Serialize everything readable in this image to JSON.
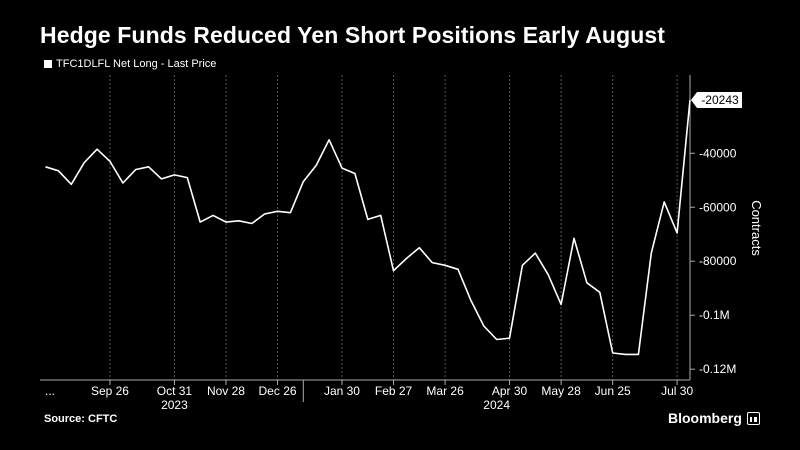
{
  "title": "Hedge Funds Reduced Yen Short Positions Early August",
  "source": "Source: CFTC",
  "brand": "Bloomberg",
  "chart_data": {
    "type": "line",
    "series": [
      {
        "name": "TFC1DLFL Net Long - Last Price",
        "points": [
          [
            "2023-08-22",
            -45000
          ],
          [
            "2023-08-29",
            -46500
          ],
          [
            "2023-09-05",
            -51500
          ],
          [
            "2023-09-12",
            -43500
          ],
          [
            "2023-09-19",
            -38500
          ],
          [
            "2023-09-26",
            -43000
          ],
          [
            "2023-10-03",
            -51000
          ],
          [
            "2023-10-10",
            -46000
          ],
          [
            "2023-10-17",
            -45000
          ],
          [
            "2023-10-24",
            -49500
          ],
          [
            "2023-10-31",
            -48000
          ],
          [
            "2023-11-07",
            -49000
          ],
          [
            "2023-11-14",
            -65500
          ],
          [
            "2023-11-21",
            -63000
          ],
          [
            "2023-11-28",
            -65500
          ],
          [
            "2023-12-05",
            -65000
          ],
          [
            "2023-12-12",
            -66000
          ],
          [
            "2023-12-19",
            -62500
          ],
          [
            "2023-12-26",
            -61500
          ],
          [
            "2024-01-02",
            -62000
          ],
          [
            "2024-01-09",
            -50500
          ],
          [
            "2024-01-16",
            -44500
          ],
          [
            "2024-01-23",
            -35000
          ],
          [
            "2024-01-30",
            -45500
          ],
          [
            "2024-02-06",
            -47500
          ],
          [
            "2024-02-13",
            -64500
          ],
          [
            "2024-02-20",
            -63000
          ],
          [
            "2024-02-27",
            -83500
          ],
          [
            "2024-03-05",
            -79000
          ],
          [
            "2024-03-12",
            -75000
          ],
          [
            "2024-03-19",
            -80500
          ],
          [
            "2024-03-26",
            -81500
          ],
          [
            "2024-04-02",
            -83000
          ],
          [
            "2024-04-09",
            -94500
          ],
          [
            "2024-04-16",
            -104000
          ],
          [
            "2024-04-23",
            -109000
          ],
          [
            "2024-04-30",
            -108500
          ],
          [
            "2024-05-07",
            -81500
          ],
          [
            "2024-05-14",
            -77000
          ],
          [
            "2024-05-21",
            -85000
          ],
          [
            "2024-05-28",
            -96000
          ],
          [
            "2024-06-04",
            -71500
          ],
          [
            "2024-06-11",
            -88000
          ],
          [
            "2024-06-18",
            -91500
          ],
          [
            "2024-06-25",
            -114000
          ],
          [
            "2024-07-02",
            -114500
          ],
          [
            "2024-07-09",
            -114500
          ],
          [
            "2024-07-16",
            -77000
          ],
          [
            "2024-07-23",
            -58000
          ],
          [
            "2024-07-30",
            -69500
          ],
          [
            "2024-08-06",
            -20243
          ]
        ]
      }
    ],
    "last_value_label": "-20243",
    "x_ticks": [
      "...",
      "Sep 26",
      "Oct 31",
      "Nov 28",
      "Dec 26",
      "Jan 30",
      "Feb 27",
      "Mar 26",
      "Apr 30",
      "May 28",
      "Jun 25",
      "Jul 30"
    ],
    "x_tick_dates": [
      "2023-08-15",
      "2023-09-26",
      "2023-10-31",
      "2023-11-28",
      "2023-12-26",
      "2024-01-30",
      "2024-02-27",
      "2024-03-26",
      "2024-04-30",
      "2024-05-28",
      "2024-06-25",
      "2024-07-30"
    ],
    "x_year_labels": [
      {
        "label": "2023",
        "date": "2023-10-31"
      },
      {
        "label": "2024",
        "date": "2024-04-23"
      }
    ],
    "x_year_divider": "2024-01-09",
    "y_ticks": [
      -40000,
      -60000,
      -80000,
      -100000,
      -120000
    ],
    "y_tick_labels": [
      "-40000",
      "-60000",
      "-80000",
      "-0.1M",
      "-0.12M"
    ],
    "ylabel": "Contracts",
    "ylim": [
      -124000,
      -11000
    ],
    "xlim": [
      "2023-08-19",
      "2024-08-06"
    ],
    "grid": "vertical-dashed",
    "legend_position": "top-left",
    "colors": {
      "background": "#000000",
      "line": "#ffffff",
      "grid": "#555555"
    }
  }
}
